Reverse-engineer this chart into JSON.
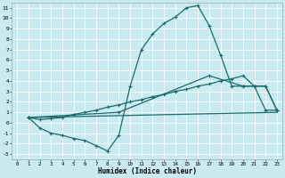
{
  "background_color": "#c8eaf0",
  "grid_color": "#ffffff",
  "line_color": "#1a6b6b",
  "xlabel": "Humidex (Indice chaleur)",
  "xlim": [
    -0.5,
    23.5
  ],
  "ylim": [
    -3.5,
    11.5
  ],
  "xticks": [
    0,
    1,
    2,
    3,
    4,
    5,
    6,
    7,
    8,
    9,
    10,
    11,
    12,
    13,
    14,
    15,
    16,
    17,
    18,
    19,
    20,
    21,
    22,
    23
  ],
  "yticks": [
    -3,
    -2,
    -1,
    0,
    1,
    2,
    3,
    4,
    5,
    6,
    7,
    8,
    9,
    10,
    11
  ],
  "curve1_x": [
    1,
    2,
    3,
    4,
    5,
    6,
    7,
    8,
    9,
    10,
    11,
    12,
    13,
    14,
    15,
    16,
    17,
    18,
    19,
    20,
    21,
    22,
    23
  ],
  "curve1_y": [
    0.5,
    -0.5,
    -1.0,
    -1.2,
    -1.5,
    -1.7,
    -2.2,
    -2.7,
    -1.2,
    3.5,
    7.0,
    8.5,
    9.5,
    10.1,
    11.0,
    11.2,
    9.3,
    6.5,
    3.5,
    3.5,
    3.5,
    1.2,
    1.2
  ],
  "curve2_x": [
    1,
    9,
    17,
    20,
    21,
    22,
    23
  ],
  "curve2_y": [
    0.5,
    1.0,
    4.5,
    3.5,
    3.5,
    3.5,
    1.2
  ],
  "curve3_x": [
    1,
    2,
    3,
    4,
    5,
    6,
    7,
    8,
    9,
    10,
    11,
    12,
    13,
    14,
    15,
    16,
    17,
    18,
    19,
    20,
    21,
    22,
    23
  ],
  "curve3_y": [
    0.5,
    0.3,
    0.4,
    0.5,
    0.8,
    1.0,
    1.2,
    1.5,
    1.7,
    2.0,
    2.2,
    2.5,
    2.7,
    3.0,
    3.2,
    3.5,
    3.7,
    4.0,
    4.2,
    4.5,
    3.5,
    3.5,
    1.2
  ],
  "curve4_x": [
    1,
    23
  ],
  "curve4_y": [
    0.5,
    1.0
  ],
  "linewidth": 0.9,
  "marker_size": 3.5
}
